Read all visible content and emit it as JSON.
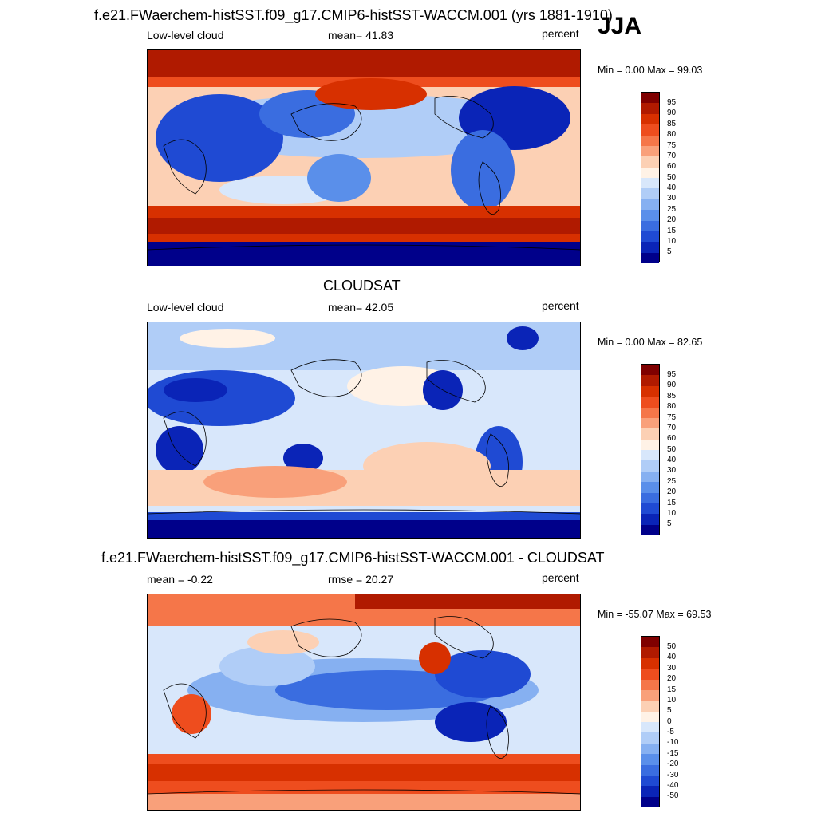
{
  "season": "JJA",
  "panels": [
    {
      "title": "f.e21.FWaerchem-histSST.f09_g17.CMIP6-histSST-WACCM.001 (yrs 1881-1910)",
      "left_label": "Low-level cloud",
      "center_label": "mean=  41.83",
      "units": "percent",
      "minmax": "Min =   0.00 Max =  99.03",
      "colorbar": [
        "95",
        "90",
        "85",
        "80",
        "75",
        "70",
        "60",
        "50",
        "40",
        "30",
        "25",
        "20",
        "15",
        "10",
        "5"
      ]
    },
    {
      "title": "CLOUDSAT",
      "left_label": "Low-level cloud",
      "center_label": "mean=  42.05",
      "units": "percent",
      "minmax": "Min =   0.00 Max =  82.65",
      "colorbar": [
        "95",
        "90",
        "85",
        "80",
        "75",
        "70",
        "60",
        "50",
        "40",
        "30",
        "25",
        "20",
        "15",
        "10",
        "5"
      ]
    },
    {
      "title": "f.e21.FWaerchem-histSST.f09_g17.CMIP6-histSST-WACCM.001 - CLOUDSAT",
      "left_label": "mean =  -0.22",
      "center_label": "rmse =  20.27",
      "units": "percent",
      "minmax": "Min = -55.07 Max =  69.53",
      "colorbar": [
        "50",
        "40",
        "30",
        "20",
        "15",
        "10",
        "5",
        "0",
        "-5",
        "-10",
        "-15",
        "-20",
        "-30",
        "-40",
        "-50"
      ]
    }
  ],
  "colors": {
    "palette": [
      "#7f0000",
      "#b01a00",
      "#d73000",
      "#ee4d1e",
      "#f57649",
      "#f9a07a",
      "#fcd0b4",
      "#fff2e6",
      "#d8e7fb",
      "#b0cdf7",
      "#86b0f1",
      "#5a8fea",
      "#3a6de0",
      "#1f4ad3",
      "#0a24b7",
      "#00008a"
    ]
  }
}
